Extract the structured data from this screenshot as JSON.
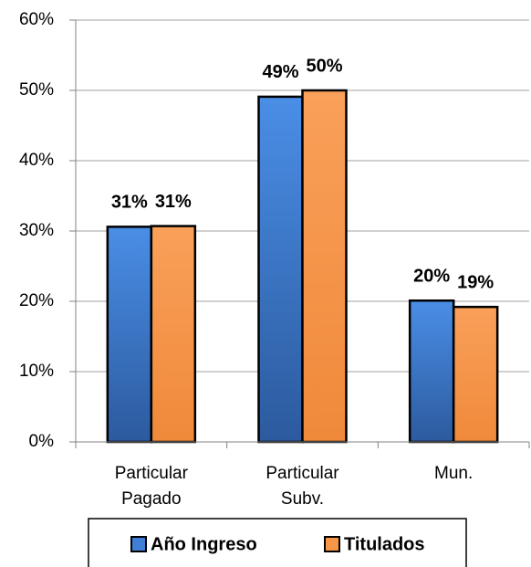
{
  "chart_data": {
    "type": "bar",
    "categories": [
      [
        "Particular",
        "Pagado"
      ],
      [
        "Particular",
        "Subv."
      ],
      [
        "Mun."
      ]
    ],
    "series": [
      {
        "name": "Año Ingreso",
        "color": "#3f7fd6",
        "values": [
          30.6,
          49.1,
          20.1
        ],
        "value_labels": [
          "31%",
          "49%",
          "20%"
        ]
      },
      {
        "name": "Titulados",
        "color": "#f79646",
        "values": [
          30.7,
          50.0,
          19.2
        ],
        "value_labels": [
          "31%",
          "50%",
          "19%"
        ]
      }
    ],
    "ylim": [
      0,
      60
    ],
    "yticks": [
      {
        "value": 0,
        "label": "0%"
      },
      {
        "value": 10,
        "label": "10%"
      },
      {
        "value": 20,
        "label": "20%"
      },
      {
        "value": 30,
        "label": "30%"
      },
      {
        "value": 40,
        "label": "40%"
      },
      {
        "value": 50,
        "label": "50%"
      },
      {
        "value": 60,
        "label": "60%"
      }
    ],
    "grid": true,
    "legend": "bottom"
  }
}
